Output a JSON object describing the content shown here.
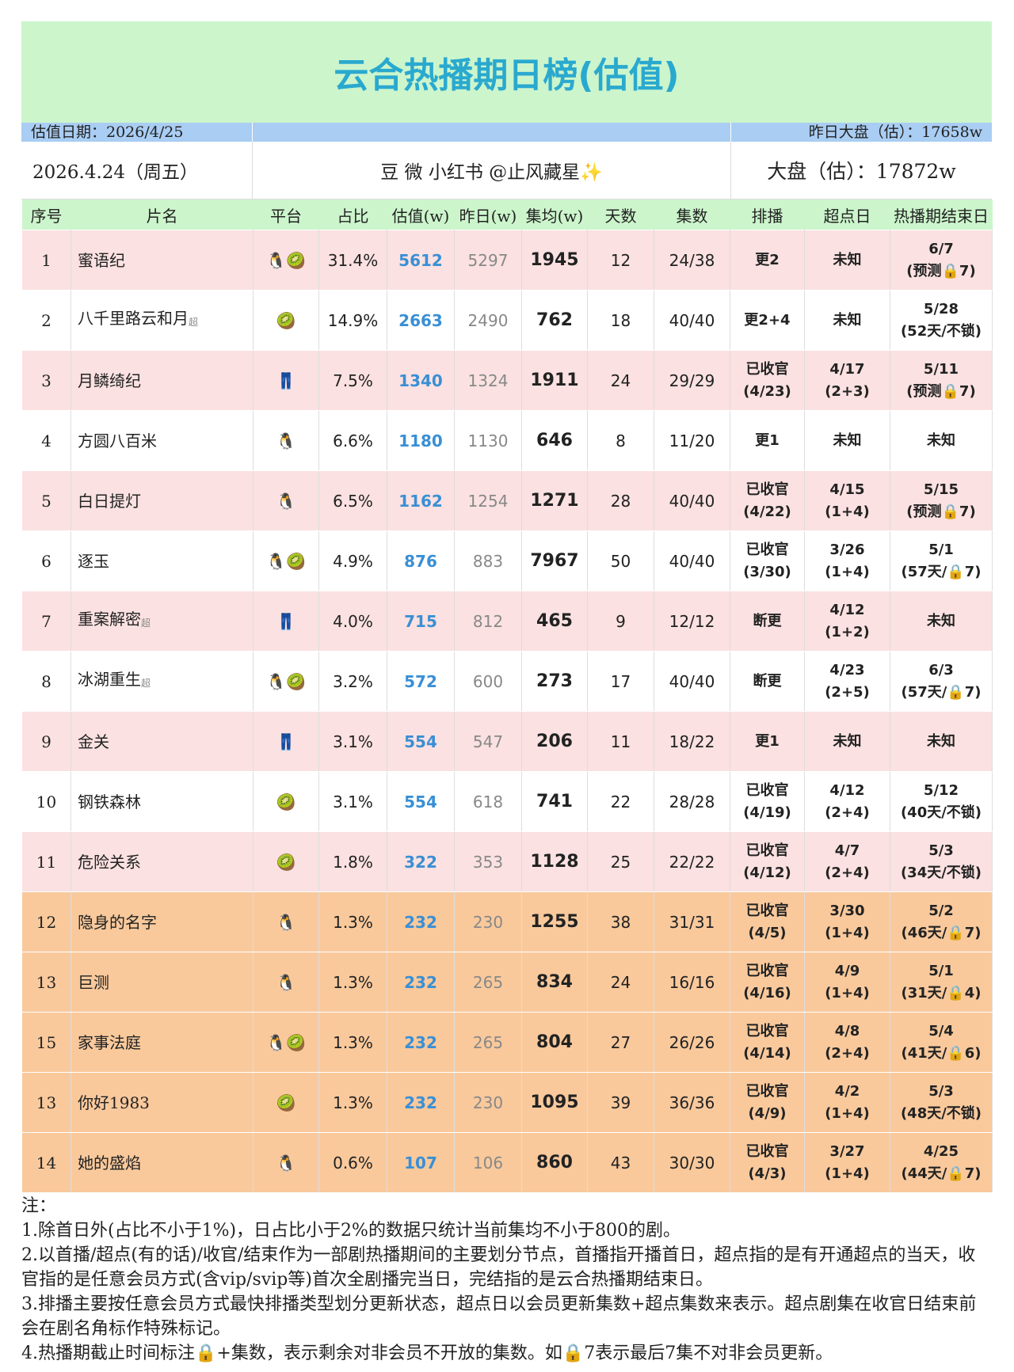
{
  "title": "云合热播期日榜(估值)",
  "info": {
    "estimate_date": "估值日期：2026/4/25",
    "yesterday_market": "昨日大盘（估）：17658w",
    "date": "2026.4.24（周五）",
    "author": "豆 微 小红书 @止风藏星✨",
    "market": "大盘（估）：17872w"
  },
  "table": {
    "headers": [
      "序号",
      "片名",
      "平台",
      "占比",
      "估值(w)",
      "昨日(w)",
      "集均(w)",
      "天数",
      "集数",
      "排播",
      "超点日",
      "热播期结束日"
    ],
    "rows": [
      {
        "rank": 1,
        "name": "蜜语纪",
        "platform": "🐧🥝",
        "share": "31.4%",
        "estimate": 5612,
        "yesterday": 5297,
        "avg": 1945,
        "days": 12,
        "episodes": "24/38",
        "schedule": "更2",
        "peak_day": "未知",
        "end": "6/7\n(预测🔒7)"
      },
      {
        "rank": 2,
        "name": "八千里路云和月",
        "tag": "超",
        "platform": "🥝",
        "share": "14.9%",
        "estimate": 2663,
        "yesterday": 2490,
        "avg": 762,
        "days": 18,
        "episodes": "40/40",
        "schedule": "更2+4",
        "peak_day": "未知",
        "end": "5/28\n(52天/不锁)"
      },
      {
        "rank": 3,
        "name": "月鳞绮纪",
        "platform": "👖",
        "share": "7.5%",
        "estimate": 1340,
        "yesterday": 1324,
        "avg": 1911,
        "days": 24,
        "episodes": "29/29",
        "schedule": "已收官\n(4/23)",
        "peak_day": "4/17\n(2+3)",
        "end": "5/11\n(预测🔒7)"
      },
      {
        "rank": 4,
        "name": "方圆八百米",
        "platform": "🐧",
        "share": "6.6%",
        "estimate": 1180,
        "yesterday": 1130,
        "avg": 646,
        "days": 8,
        "episodes": "11/20",
        "schedule": "更1",
        "peak_day": "未知",
        "end": "未知"
      },
      {
        "rank": 5,
        "name": "白日提灯",
        "platform": "🐧",
        "share": "6.5%",
        "estimate": 1162,
        "yesterday": 1254,
        "avg": 1271,
        "days": 28,
        "episodes": "40/40",
        "schedule": "已收官\n(4/22)",
        "peak_day": "4/15\n(1+4)",
        "end": "5/15\n(预测🔒7)"
      },
      {
        "rank": 6,
        "name": "逐玉",
        "platform": "🐧🥝",
        "share": "4.9%",
        "estimate": 876,
        "yesterday": 883,
        "avg": 7967,
        "days": 50,
        "episodes": "40/40",
        "schedule": "已收官\n(3/30)",
        "peak_day": "3/26\n(1+4)",
        "end": "5/1\n(57天/🔒7)"
      },
      {
        "rank": 7,
        "name": "重案解密",
        "tag": "超",
        "platform": "👖",
        "share": "4.0%",
        "estimate": 715,
        "yesterday": 812,
        "avg": 465,
        "days": 9,
        "episodes": "12/12",
        "schedule": "断更",
        "peak_day": "4/12\n(1+2)",
        "end": "未知"
      },
      {
        "rank": 8,
        "name": "冰湖重生",
        "tag": "超",
        "platform": "🐧🥝",
        "share": "3.2%",
        "estimate": 572,
        "yesterday": 600,
        "avg": 273,
        "days": 17,
        "episodes": "40/40",
        "schedule": "断更",
        "peak_day": "4/23\n(2+5)",
        "end": "6/3\n(57天/🔒7)"
      },
      {
        "rank": 9,
        "name": "金关",
        "platform": "👖",
        "share": "3.1%",
        "estimate": 554,
        "yesterday": 547,
        "avg": 206,
        "days": 11,
        "episodes": "18/22",
        "schedule": "更1",
        "peak_day": "未知",
        "end": "未知"
      },
      {
        "rank": 10,
        "name": "钢铁森林",
        "platform": "🥝",
        "share": "3.1%",
        "estimate": 554,
        "yesterday": 618,
        "avg": 741,
        "days": 22,
        "episodes": "28/28",
        "schedule": "已收官\n(4/19)",
        "peak_day": "4/12\n(2+4)",
        "end": "5/12\n(40天/不锁)"
      },
      {
        "rank": 11,
        "name": "危险关系",
        "platform": "🥝",
        "share": "1.8%",
        "estimate": 322,
        "yesterday": 353,
        "avg": 1128,
        "days": 25,
        "episodes": "22/22",
        "schedule": "已收官\n(4/12)",
        "peak_day": "4/7\n(2+4)",
        "end": "5/3\n(34天/不锁)"
      },
      {
        "rank": 12,
        "name": "隐身的名字",
        "platform": "🐧",
        "share": "1.3%",
        "estimate": 232,
        "yesterday": 230,
        "avg": 1255,
        "days": 38,
        "episodes": "31/31",
        "schedule": "已收官\n(4/5)",
        "peak_day": "3/30\n(1+4)",
        "end": "5/2\n(46天/🔒7)"
      },
      {
        "rank": 13,
        "name": "巨测",
        "platform": "🐧",
        "share": "1.3%",
        "estimate": 232,
        "yesterday": 265,
        "avg": 834,
        "days": 24,
        "episodes": "16/16",
        "schedule": "已收官\n(4/16)",
        "peak_day": "4/9\n(1+4)",
        "end": "5/1\n(31天/🔒4)"
      },
      {
        "rank": 15,
        "name": "家事法庭",
        "platform": "🐧🥝",
        "share": "1.3%",
        "estimate": 232,
        "yesterday": 265,
        "avg": 804,
        "days": 27,
        "episodes": "26/26",
        "schedule": "已收官\n(4/14)",
        "peak_day": "4/8\n(2+4)",
        "end": "5/4\n(41天/🔒6)"
      },
      {
        "rank": 13,
        "name": "你好1983",
        "platform": "🥝",
        "share": "1.3%",
        "estimate": 232,
        "yesterday": 230,
        "avg": 1095,
        "days": 39,
        "episodes": "36/36",
        "schedule": "已收官\n(4/9)",
        "peak_day": "4/2\n(1+4)",
        "end": "5/3\n(48天/不锁)"
      },
      {
        "rank": 14,
        "name": "她的盛焰",
        "platform": "🐧",
        "share": "0.6%",
        "estimate": 107,
        "yesterday": 106,
        "avg": 860,
        "days": 43,
        "episodes": "30/30",
        "schedule": "已收官\n(4/3)",
        "peak_day": "3/27\n(1+4)",
        "end": "4/25\n(44天/🔒7)"
      }
    ]
  },
  "notes": {
    "heading": "注：",
    "items": [
      "1.除首日外(占比不小于1%)，日占比小于2%的数据只统计当前集均不小于800的剧。",
      "2.以首播/超点(有的话)/收官/结束作为一部剧热播期间的主要划分节点，首播指开播首日，超点指的是有开通超点的当天，收官指的是任意会员方式(含vip/svip等)首次全剧播完当日，完结指的是云合热播期结束日。",
      "3.排播主要按任意会员方式最快排播类型划分更新状态，超点日以会员更新集数+超点集数来表示。超点剧集在收官日结束前会在剧名角标作特殊标记。",
      "4.热播期截止时间标注🔒+集数，表示剩余对非会员不开放的集数。如🔒7表示最后7集不对非会员更新。"
    ]
  }
}
